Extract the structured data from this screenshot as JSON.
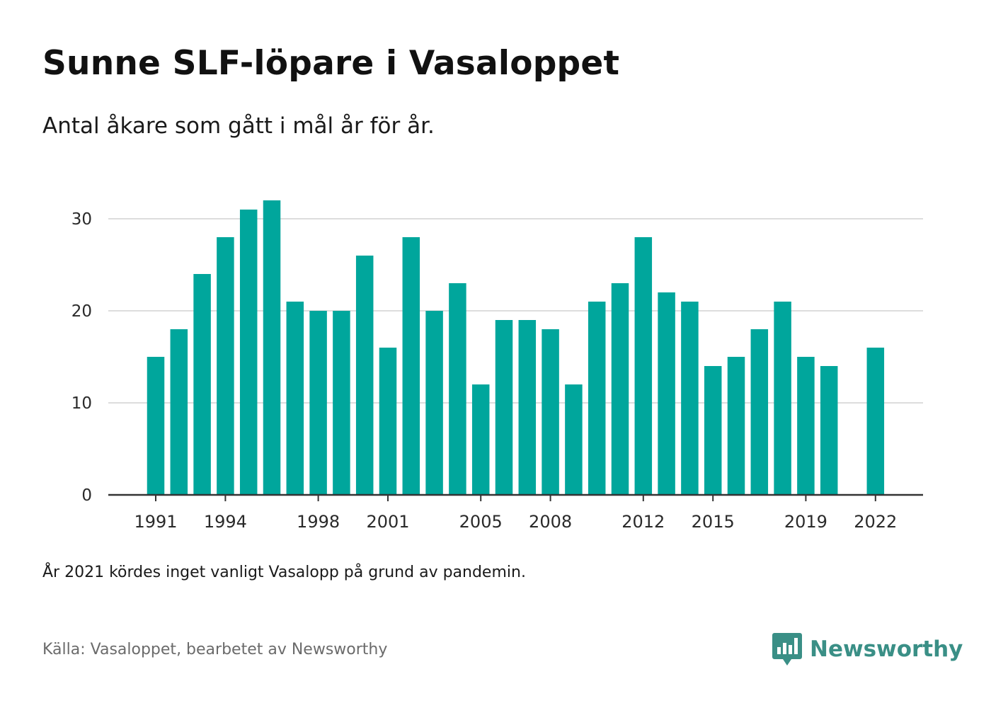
{
  "header": {
    "title": "Sunne SLF-löpare i Vasaloppet",
    "subtitle": "Antal åkare som gått i mål år för år."
  },
  "footer": {
    "note": "År 2021 kördes inget vanligt Vasalopp på grund av pandemin.",
    "source": "Källa: Vasaloppet, bearbetet av Newsworthy",
    "logo_text": "Newsworthy",
    "logo_icon": "bar-chart-speech-bubble-icon"
  },
  "colors": {
    "bar": "#00a69c",
    "grid": "#dddddd",
    "axis": "#333333",
    "logo": "#3a8f86"
  },
  "chart_data": {
    "type": "bar",
    "title": "Sunne SLF-löpare i Vasaloppet",
    "subtitle": "Antal åkare som gått i mål år för år.",
    "xlabel": "",
    "ylabel": "",
    "ylim": [
      0,
      33
    ],
    "yticks": [
      0,
      10,
      20,
      30
    ],
    "xticks": [
      1991,
      1994,
      1998,
      2001,
      2005,
      2008,
      2012,
      2015,
      2019,
      2022
    ],
    "grid": true,
    "categories": [
      1991,
      1992,
      1993,
      1994,
      1995,
      1996,
      1997,
      1998,
      1999,
      2000,
      2001,
      2002,
      2003,
      2004,
      2005,
      2006,
      2007,
      2008,
      2009,
      2010,
      2011,
      2012,
      2013,
      2014,
      2015,
      2016,
      2017,
      2018,
      2019,
      2020,
      2021,
      2022
    ],
    "values": [
      15,
      18,
      24,
      28,
      31,
      32,
      21,
      20,
      20,
      26,
      16,
      28,
      20,
      23,
      12,
      19,
      19,
      18,
      12,
      21,
      23,
      28,
      22,
      21,
      14,
      15,
      18,
      21,
      15,
      14,
      null,
      16
    ]
  }
}
